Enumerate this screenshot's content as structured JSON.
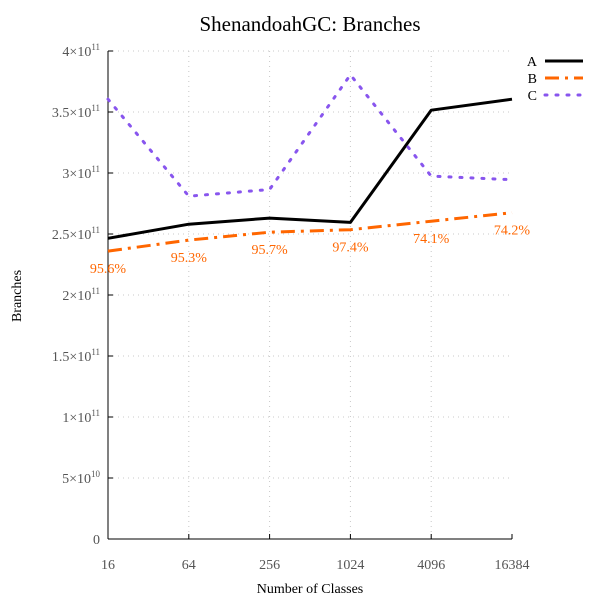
{
  "chart_data": {
    "type": "line",
    "title": "ShenandoahGC: Branches",
    "xlabel": "Number of Classes",
    "ylabel": "Branches",
    "x_scale": "log2",
    "categories": [
      "16",
      "64",
      "256",
      "1024",
      "4096",
      "16384"
    ],
    "ylim": [
      0,
      400000000000
    ],
    "y_ticks": [
      {
        "value": 0,
        "mantissa": "0",
        "exponent": ""
      },
      {
        "value": 50000000000,
        "mantissa": "5×10",
        "exponent": "10"
      },
      {
        "value": 100000000000,
        "mantissa": "1×10",
        "exponent": "11"
      },
      {
        "value": 150000000000,
        "mantissa": "1.5×10",
        "exponent": "11"
      },
      {
        "value": 200000000000,
        "mantissa": "2×10",
        "exponent": "11"
      },
      {
        "value": 250000000000,
        "mantissa": "2.5×10",
        "exponent": "11"
      },
      {
        "value": 300000000000,
        "mantissa": "3×10",
        "exponent": "11"
      },
      {
        "value": 350000000000,
        "mantissa": "3.5×10",
        "exponent": "11"
      },
      {
        "value": 400000000000,
        "mantissa": "4×10",
        "exponent": "11"
      }
    ],
    "grid": true,
    "legend_position": "top-right",
    "series": [
      {
        "name": "A",
        "color": "#000000",
        "dash": "solid",
        "values": [
          246500000000,
          258000000000,
          263000000000,
          259500000000,
          351500000000,
          360500000000
        ]
      },
      {
        "name": "B",
        "color": "#ff6600",
        "dash": "dashdot",
        "values": [
          236000000000,
          245000000000,
          251500000000,
          253500000000,
          260500000000,
          267500000000
        ],
        "labels": [
          "95.6%",
          "95.3%",
          "95.7%",
          "97.4%",
          "74.1%",
          "74.2%"
        ]
      },
      {
        "name": "C",
        "color": "#8855ee",
        "dash": "dotted",
        "values": [
          360500000000,
          281000000000,
          286500000000,
          380500000000,
          297500000000,
          294500000000
        ]
      }
    ]
  }
}
